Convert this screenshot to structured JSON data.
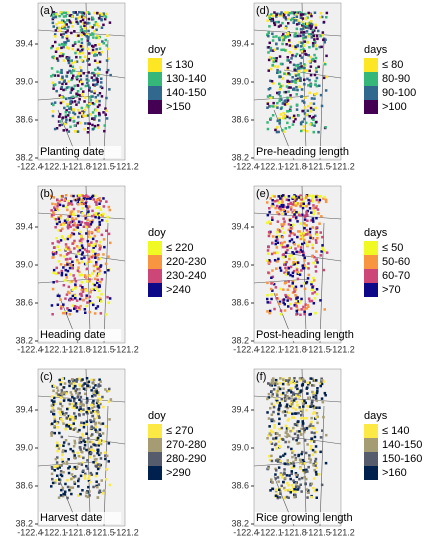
{
  "axes": {
    "yticks": [
      "39.4",
      "39.0",
      "38.6",
      "38.2"
    ],
    "xticks": [
      "-122.4",
      "-122.1",
      "-121.8",
      "-121.5",
      "-121.2"
    ]
  },
  "panels": [
    {
      "tag": "(a)",
      "caption": "Planting date",
      "legend_title": "doy",
      "legend": [
        {
          "label": "≤ 130",
          "color": "#fde725"
        },
        {
          "label": "130-140",
          "color": "#35b779"
        },
        {
          "label": "140-150",
          "color": "#31688e"
        },
        {
          "label": ">150",
          "color": "#440154"
        }
      ]
    },
    {
      "tag": "(d)",
      "caption": "Pre-heading length",
      "legend_title": "days",
      "legend": [
        {
          "label": "≤ 80",
          "color": "#fde725"
        },
        {
          "label": "80-90",
          "color": "#35b779"
        },
        {
          "label": "90-100",
          "color": "#31688e"
        },
        {
          "label": ">100",
          "color": "#440154"
        }
      ]
    },
    {
      "tag": "(b)",
      "caption": "Heading date",
      "legend_title": "doy",
      "legend": [
        {
          "label": "≤ 220",
          "color": "#f0f921"
        },
        {
          "label": "220-230",
          "color": "#f89540"
        },
        {
          "label": "230-240",
          "color": "#cc4778"
        },
        {
          "label": ">240",
          "color": "#0d0887"
        }
      ]
    },
    {
      "tag": "(e)",
      "caption": "Post-heading length",
      "legend_title": "days",
      "legend": [
        {
          "label": "≤ 50",
          "color": "#f0f921"
        },
        {
          "label": "50-60",
          "color": "#f89540"
        },
        {
          "label": "60-70",
          "color": "#cc4778"
        },
        {
          "label": ">70",
          "color": "#0d0887"
        }
      ]
    },
    {
      "tag": "(c)",
      "caption": "Harvest date",
      "legend_title": "doy",
      "legend": [
        {
          "label": "≤ 270",
          "color": "#fde945"
        },
        {
          "label": "270-280",
          "color": "#a59c74"
        },
        {
          "label": "280-290",
          "color": "#575c6d"
        },
        {
          "label": ">290",
          "color": "#00204d"
        }
      ]
    },
    {
      "tag": "(f)",
      "caption": "Rice growing length",
      "legend_title": "days",
      "legend": [
        {
          "label": "≤ 140",
          "color": "#fde945"
        },
        {
          "label": "140-150",
          "color": "#a59c74"
        },
        {
          "label": "150-160",
          "color": "#575c6d"
        },
        {
          "label": ">160",
          "color": "#00204d"
        }
      ]
    }
  ]
}
